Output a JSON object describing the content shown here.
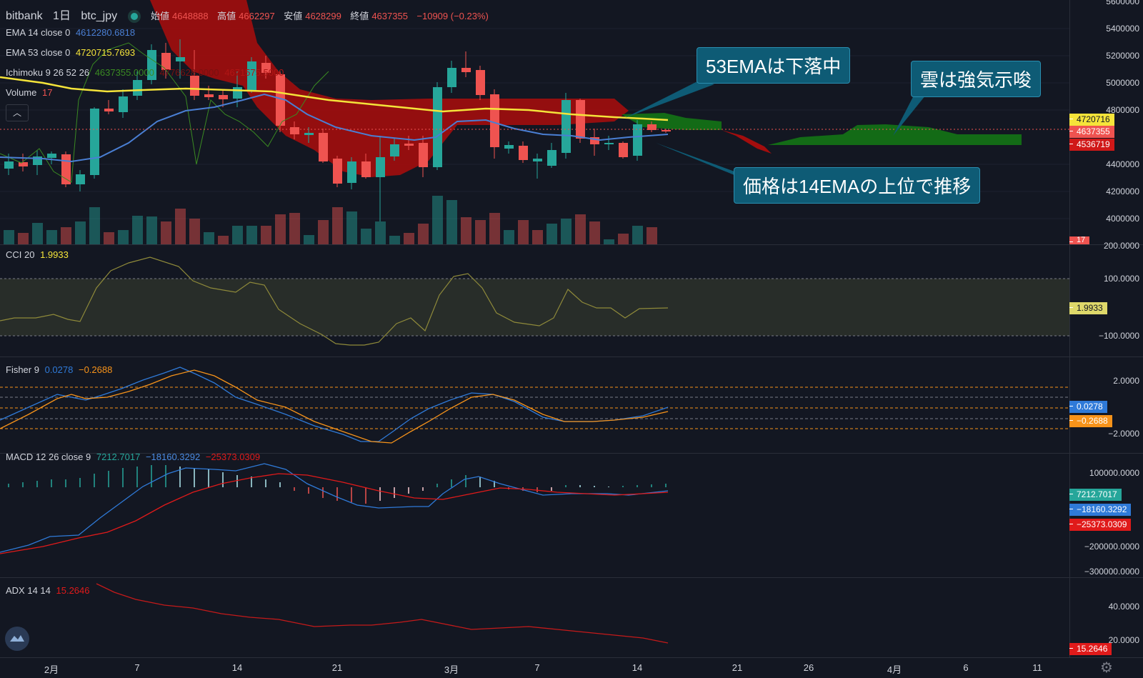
{
  "header": {
    "exchange": "bitbank",
    "interval": "1日",
    "symbol": "btc_jpy",
    "ohlc": [
      {
        "label": "始値",
        "value": "4648888"
      },
      {
        "label": "高値",
        "value": "4662297"
      },
      {
        "label": "安値",
        "value": "4628299"
      },
      {
        "label": "終値",
        "value": "4637355"
      }
    ],
    "change": "−10909 (−0.23%)"
  },
  "main_legends": {
    "ema14": {
      "label": "EMA 14 close 0",
      "value": "4612280.6818"
    },
    "ema53": {
      "label": "EMA 53 close 0",
      "value": "4720715.7693"
    },
    "ichimoku": {
      "label": "Ichimoku 9 26 52 26",
      "v1": "4637355.0000",
      "v2": "4776628.0000",
      "v3": "4671575.5000"
    },
    "volume": {
      "label": "Volume",
      "value": "17"
    }
  },
  "price_scale": [
    "5600000",
    "5400000",
    "5200000",
    "5000000",
    "4800000",
    "4400000",
    "4200000",
    "4000000"
  ],
  "price_tags": {
    "ema53": "4720716",
    "close": "4637355",
    "low": "4536719",
    "volume": "17"
  },
  "annotations": {
    "ema53_note": "53EMAは下落中",
    "cloud_note": "雲は強気示唆",
    "price_note": "価格は14EMAの上位で推移"
  },
  "cci": {
    "label": "CCI 20",
    "value": "1.9933",
    "scale": [
      "200.0000",
      "100.0000",
      "−100.0000"
    ],
    "tag": "1.9933"
  },
  "fisher": {
    "label": "Fisher 9",
    "v1": "0.0278",
    "v2": "−0.2688",
    "scale": [
      "2.0000",
      "−2.0000"
    ],
    "tag1": "0.0278",
    "tag2": "−0.2688"
  },
  "macd": {
    "label": "MACD 12 26 close 9",
    "hist": "7212.7017",
    "macd": "−18160.3292",
    "signal": "−25373.0309",
    "scale": [
      "100000.0000",
      "−200000.0000",
      "−300000.0000"
    ],
    "tag_hist": "7212.7017",
    "tag_macd": "−18160.3292",
    "tag_signal": "−25373.0309"
  },
  "adx": {
    "label": "ADX 14 14",
    "value": "15.2646",
    "scale": [
      "40.0000",
      "20.0000"
    ],
    "tag": "15.2646"
  },
  "time_axis": [
    "2月",
    "7",
    "14",
    "21",
    "3月",
    "7",
    "14",
    "21",
    "26",
    "4月",
    "6",
    "11"
  ],
  "colors": {
    "up": "#26a69a",
    "down": "#ef5350",
    "ema14": "#4a7fd4",
    "ema53": "#f5e43a",
    "cloud_red": "#a30d0d",
    "cloud_green": "#136b16"
  }
}
